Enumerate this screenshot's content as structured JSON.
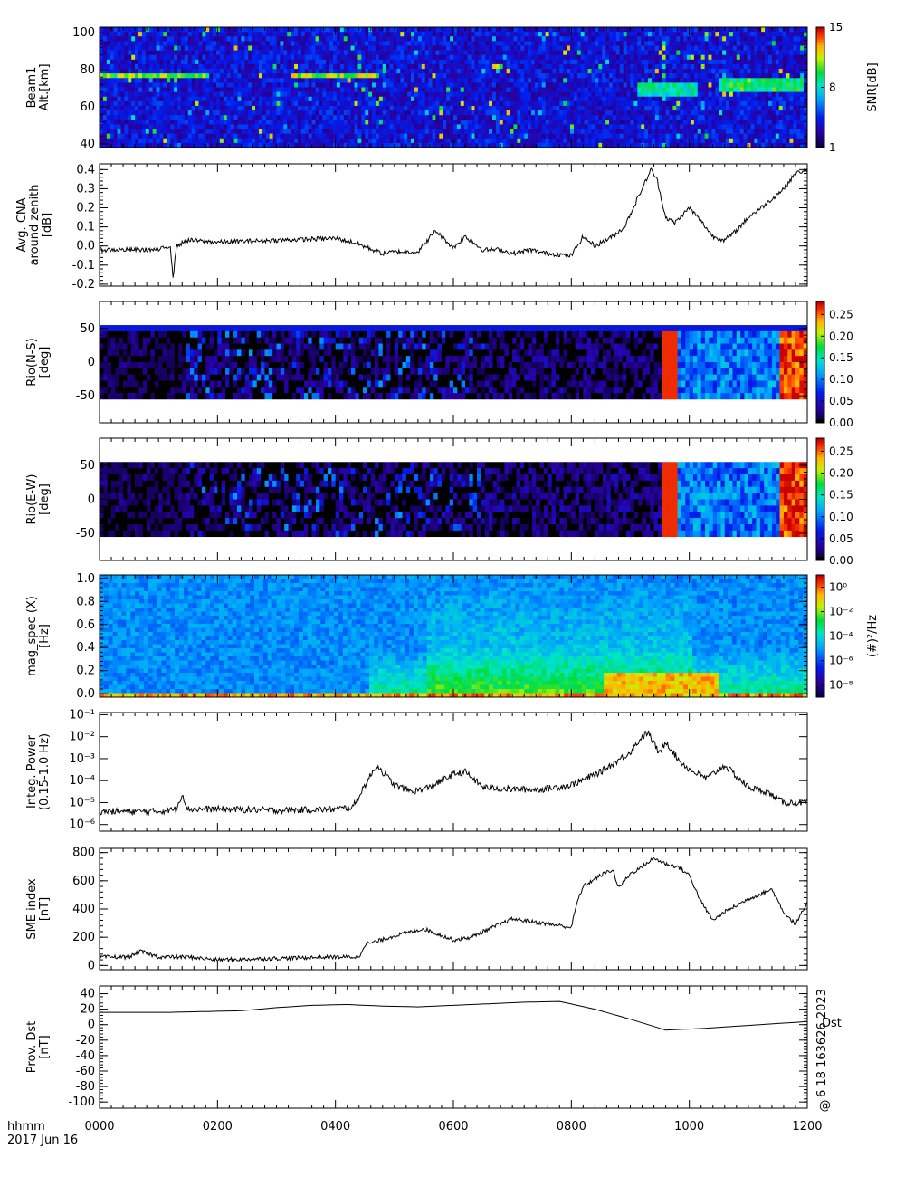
{
  "footer": {
    "x_unit": "hhmm",
    "date": "2017 Jun 16",
    "x_ticks": [
      "0000",
      "0200",
      "0400",
      "0600",
      "0800",
      "1000",
      "1200"
    ],
    "stamp": "6 18 163626 2023",
    "stamp_mark": "@"
  },
  "chart_data": [
    {
      "id": "beam1",
      "type": "heatmap",
      "ylabel_lines": [
        "Beam1",
        "Alt.[km]"
      ],
      "ylim": [
        38,
        103
      ],
      "y_ticks": [
        40,
        60,
        80,
        100
      ],
      "y_tick_labels": [
        "40",
        "60",
        "80",
        "100"
      ],
      "colorbar": {
        "label": "SNR[dB]",
        "ticks": [
          "1",
          "8",
          "15"
        ],
        "range": [
          1,
          15
        ],
        "colormap": "rainbow"
      },
      "features": [
        {
          "t": [
            0,
            180
          ],
          "alt": [
            75,
            78
          ],
          "snr": 12
        },
        {
          "t": [
            320,
            470
          ],
          "alt": [
            75,
            78
          ],
          "snr": 13
        },
        {
          "t": [
            910,
            1010
          ],
          "alt": [
            66,
            72
          ],
          "snr": 10
        },
        {
          "t": [
            1050,
            1190
          ],
          "alt": [
            68,
            75
          ],
          "snr": 11
        }
      ]
    },
    {
      "id": "cna",
      "type": "line",
      "ylabel_lines": [
        "Avg. CNA",
        "around zenith",
        "[dB]"
      ],
      "ylim": [
        -0.21,
        0.43
      ],
      "y_ticks": [
        -0.2,
        -0.1,
        0.0,
        0.1,
        0.2,
        0.3,
        0.4
      ],
      "y_tick_labels": [
        "-0.2",
        "-0.1",
        "0.0",
        "0.1",
        "0.2",
        "0.3",
        "0.4"
      ],
      "x": [
        0,
        100,
        120,
        125,
        130,
        150,
        200,
        300,
        400,
        430,
        480,
        500,
        540,
        570,
        600,
        620,
        650,
        680,
        700,
        730,
        760,
        800,
        820,
        840,
        870,
        890,
        920,
        935,
        945,
        960,
        975,
        1000,
        1020,
        1040,
        1060,
        1080,
        1100,
        1130,
        1160,
        1180,
        1200
      ],
      "y": [
        -0.02,
        -0.02,
        0.0,
        -0.17,
        0.0,
        0.03,
        0.02,
        0.03,
        0.04,
        0.02,
        -0.04,
        -0.03,
        -0.03,
        0.08,
        -0.01,
        0.05,
        -0.02,
        -0.02,
        -0.04,
        -0.02,
        -0.04,
        -0.05,
        0.05,
        0.0,
        0.05,
        0.1,
        0.3,
        0.4,
        0.35,
        0.15,
        0.12,
        0.2,
        0.13,
        0.05,
        0.03,
        0.08,
        0.15,
        0.22,
        0.3,
        0.38,
        0.4
      ],
      "noise_scale": 0.012
    },
    {
      "id": "rio_ns",
      "type": "heatmap",
      "ylabel_lines": [
        "Rio(N-S)",
        "[deg]"
      ],
      "ylim": [
        -90,
        90
      ],
      "y_ticks": [
        -50,
        0,
        50
      ],
      "y_tick_labels": [
        "-50",
        "0",
        "50"
      ],
      "data_range": [
        -55,
        55
      ],
      "colorbar": {
        "label": "",
        "ticks": [
          "0.00",
          "0.05",
          "0.10",
          "0.15",
          "0.20",
          "0.25"
        ],
        "range": [
          0,
          0.28
        ],
        "colormap": "rainbow_black"
      }
    },
    {
      "id": "rio_ew",
      "type": "heatmap",
      "ylabel_lines": [
        "Rio(E-W)",
        "[deg]"
      ],
      "ylim": [
        -90,
        90
      ],
      "y_ticks": [
        -50,
        0,
        50
      ],
      "y_tick_labels": [
        "-50",
        "0",
        "50"
      ],
      "data_range": [
        -55,
        55
      ],
      "colorbar": {
        "label": "",
        "ticks": [
          "0.00",
          "0.05",
          "0.10",
          "0.15",
          "0.20",
          "0.25"
        ],
        "range": [
          0,
          0.28
        ],
        "colormap": "rainbow_black"
      }
    },
    {
      "id": "magspec",
      "type": "heatmap",
      "ylabel_lines": [
        "mag_spec (X)",
        "[Hz]"
      ],
      "ylim": [
        -0.03,
        1.03
      ],
      "y_ticks": [
        0.0,
        0.2,
        0.4,
        0.6,
        0.8,
        1.0
      ],
      "y_tick_labels": [
        "0.0",
        "0.2",
        "0.4",
        "0.6",
        "0.8",
        "1.0"
      ],
      "colorbar": {
        "label": "(#)²/Hz",
        "ticks": [
          "10⁻⁸",
          "10⁻⁶",
          "10⁻⁴",
          "10⁻²",
          "10⁰"
        ],
        "range": [
          -9,
          1
        ],
        "colormap": "rainbow",
        "log": true
      }
    },
    {
      "id": "integ",
      "type": "line",
      "log_y": true,
      "ylabel_lines": [
        "Integ. Power",
        "(0.15-1.0 Hz)"
      ],
      "ylim_log": [
        -6.3,
        -0.9
      ],
      "y_ticks_log": [
        -6,
        -5,
        -4,
        -3,
        -2,
        -1
      ],
      "y_tick_labels": [
        "10⁻⁶",
        "10⁻⁵",
        "10⁻⁴",
        "10⁻³",
        "10⁻²",
        "10⁻¹"
      ],
      "x": [
        0,
        100,
        130,
        140,
        150,
        200,
        300,
        400,
        430,
        450,
        470,
        500,
        530,
        560,
        600,
        620,
        650,
        700,
        750,
        800,
        850,
        900,
        920,
        930,
        950,
        960,
        980,
        1000,
        1030,
        1060,
        1100,
        1130,
        1160,
        1200
      ],
      "y_log": [
        -5.4,
        -5.4,
        -5.3,
        -4.6,
        -5.3,
        -5.3,
        -5.35,
        -5.3,
        -5.2,
        -4.2,
        -3.3,
        -4.2,
        -4.5,
        -4.3,
        -3.7,
        -3.6,
        -4.3,
        -4.4,
        -4.4,
        -4.2,
        -3.6,
        -2.7,
        -2.0,
        -1.8,
        -2.8,
        -2.2,
        -3.0,
        -3.5,
        -3.9,
        -3.3,
        -4.3,
        -4.5,
        -5.0,
        -5.0
      ],
      "noise_scale": 0.15
    },
    {
      "id": "sme",
      "type": "line",
      "ylabel_lines": [
        "SME index",
        "[nT]"
      ],
      "ylim": [
        -30,
        830
      ],
      "y_ticks": [
        0,
        200,
        400,
        600,
        800
      ],
      "y_tick_labels": [
        "0",
        "200",
        "400",
        "600",
        "800"
      ],
      "x": [
        0,
        50,
        70,
        100,
        150,
        200,
        300,
        400,
        440,
        450,
        470,
        500,
        550,
        600,
        630,
        650,
        700,
        750,
        800,
        810,
        820,
        850,
        870,
        880,
        900,
        920,
        940,
        960,
        980,
        1000,
        1020,
        1040,
        1060,
        1100,
        1140,
        1160,
        1180,
        1200
      ],
      "y": [
        60,
        60,
        100,
        60,
        60,
        40,
        50,
        60,
        60,
        150,
        170,
        210,
        260,
        180,
        200,
        240,
        330,
        300,
        270,
        450,
        560,
        640,
        680,
        550,
        650,
        700,
        760,
        720,
        700,
        640,
        450,
        320,
        380,
        470,
        540,
        380,
        290,
        440
      ],
      "noise_scale": 14
    },
    {
      "id": "dst",
      "type": "line",
      "ylabel_lines": [
        "Prov. Dst",
        "[nT]"
      ],
      "ylim": [
        -108,
        50
      ],
      "y_ticks": [
        -100,
        -80,
        -60,
        -40,
        -20,
        0,
        20,
        40
      ],
      "y_tick_labels": [
        "-100",
        "-80",
        "-60",
        "-40",
        "-20",
        "0",
        "20",
        "40"
      ],
      "series_name": "Dst",
      "x": [
        0,
        60,
        120,
        180,
        240,
        300,
        360,
        420,
        480,
        540,
        600,
        660,
        720,
        780,
        840,
        900,
        960,
        1020,
        1080,
        1140,
        1200
      ],
      "y": [
        16,
        16,
        16,
        17,
        18,
        22,
        25,
        26,
        24,
        23,
        25,
        27,
        29,
        30,
        20,
        7,
        -7,
        -5,
        -2,
        1,
        4
      ]
    }
  ]
}
